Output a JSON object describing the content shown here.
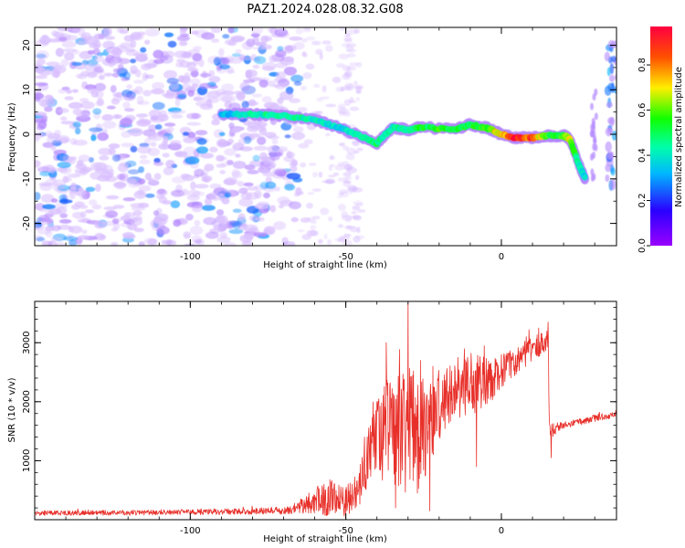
{
  "title": "PAZ1.2024.028.08.32.G08",
  "colors": {
    "snr_line": "#e8302a",
    "spectral_core": "#f00000",
    "spectral_low": "#c9a6ff"
  },
  "chart_data": [
    {
      "type": "heatmap",
      "xlabel": "Height of straight line (km)",
      "ylabel": "Frequency (Hz)",
      "xlim": [
        -150,
        37
      ],
      "ylim": [
        -25,
        24
      ],
      "xticks": [
        -100,
        -50,
        0
      ],
      "yticks": [
        -20,
        -10,
        0,
        10,
        20
      ],
      "colorbar": {
        "label": "Normalized spectral amplitude",
        "range": [
          0.0,
          0.97
        ],
        "ticks": [
          0.0,
          0.2,
          0.4,
          0.6,
          0.8
        ],
        "tick_labels": [
          "0.0",
          "0.2",
          "0.4",
          "0.6",
          "0.8"
        ],
        "colormap": "gist_rainbow_r (violet → blue → cyan → green → yellow → red)"
      },
      "ridge": {
        "description": "main frequency ridge of high amplitude",
        "points": [
          {
            "x": -90,
            "y": 4.5,
            "amp": 0.35
          },
          {
            "x": -80,
            "y": 4.5,
            "amp": 0.45
          },
          {
            "x": -70,
            "y": 4.2,
            "amp": 0.5
          },
          {
            "x": -60,
            "y": 3.2,
            "amp": 0.45
          },
          {
            "x": -52,
            "y": 1.5,
            "amp": 0.4
          },
          {
            "x": -45,
            "y": -0.5,
            "amp": 0.45
          },
          {
            "x": -40,
            "y": -2.0,
            "amp": 0.5
          },
          {
            "x": -35,
            "y": 1.5,
            "amp": 0.45
          },
          {
            "x": -30,
            "y": 1.0,
            "amp": 0.5
          },
          {
            "x": -25,
            "y": 1.6,
            "amp": 0.55
          },
          {
            "x": -15,
            "y": 1.0,
            "amp": 0.6
          },
          {
            "x": -10,
            "y": 2.2,
            "amp": 0.55
          },
          {
            "x": -5,
            "y": 1.5,
            "amp": 0.6
          },
          {
            "x": 0,
            "y": 0.0,
            "amp": 0.8
          },
          {
            "x": 5,
            "y": -0.8,
            "amp": 0.97
          },
          {
            "x": 10,
            "y": -0.8,
            "amp": 0.9
          },
          {
            "x": 15,
            "y": -0.3,
            "amp": 0.6
          },
          {
            "x": 20,
            "y": -0.3,
            "amp": 0.6
          },
          {
            "x": 22,
            "y": -1.0,
            "amp": 0.75
          },
          {
            "x": 25,
            "y": -7.0,
            "amp": 0.45
          },
          {
            "x": 27,
            "y": -10.0,
            "amp": 0.4
          }
        ]
      }
    },
    {
      "type": "line",
      "xlabel": "Height of straight line (km)",
      "ylabel": "SNR (10 * v/v)",
      "xlim": [
        -150,
        37
      ],
      "ylim": [
        0,
        3700
      ],
      "xticks": [
        -100,
        -50,
        0
      ],
      "yticks": [
        1000,
        2000,
        3000
      ],
      "series": [
        {
          "envelope": [
            {
              "x": -150,
              "mean": 110,
              "amp": 40
            },
            {
              "x": -120,
              "mean": 120,
              "amp": 45
            },
            {
              "x": -100,
              "mean": 130,
              "amp": 45
            },
            {
              "x": -80,
              "mean": 140,
              "amp": 55
            },
            {
              "x": -68,
              "mean": 160,
              "amp": 70
            },
            {
              "x": -62,
              "mean": 280,
              "amp": 170
            },
            {
              "x": -56,
              "mean": 380,
              "amp": 320
            },
            {
              "x": -50,
              "mean": 300,
              "amp": 260
            },
            {
              "x": -46,
              "mean": 500,
              "amp": 320
            },
            {
              "x": -41,
              "mean": 1300,
              "amp": 650
            },
            {
              "x": -36,
              "mean": 1500,
              "amp": 950
            },
            {
              "x": -30,
              "mean": 1450,
              "amp": 1150
            },
            {
              "x": -25,
              "mean": 1500,
              "amp": 900
            },
            {
              "x": -20,
              "mean": 1900,
              "amp": 550
            },
            {
              "x": -15,
              "mean": 2150,
              "amp": 600
            },
            {
              "x": -10,
              "mean": 2300,
              "amp": 550
            },
            {
              "x": -5,
              "mean": 2350,
              "amp": 450
            },
            {
              "x": 0,
              "mean": 2500,
              "amp": 300
            },
            {
              "x": 5,
              "mean": 2700,
              "amp": 250
            },
            {
              "x": 10,
              "mean": 2900,
              "amp": 200
            },
            {
              "x": 15,
              "mean": 3050,
              "amp": 200
            },
            {
              "x": 15.5,
              "mean": 1500,
              "amp": 150
            },
            {
              "x": 20,
              "mean": 1600,
              "amp": 60
            },
            {
              "x": 30,
              "mean": 1720,
              "amp": 60
            },
            {
              "x": 37,
              "mean": 1780,
              "amp": 60
            }
          ],
          "spikes": [
            {
              "x": -50.5,
              "y": 60
            },
            {
              "x": -44,
              "y": 1400
            },
            {
              "x": -40,
              "y": 2000
            },
            {
              "x": -37,
              "y": 3000
            },
            {
              "x": -34,
              "y": 200
            },
            {
              "x": -30,
              "y": 3700
            },
            {
              "x": -27,
              "y": 450
            },
            {
              "x": -26,
              "y": 2700
            },
            {
              "x": -23,
              "y": 150
            },
            {
              "x": -22,
              "y": 2600
            },
            {
              "x": -17,
              "y": 2100
            },
            {
              "x": -14,
              "y": 2750
            },
            {
              "x": -12,
              "y": 2650
            },
            {
              "x": -8,
              "y": 900
            },
            {
              "x": -7,
              "y": 2300
            },
            {
              "x": 0,
              "y": 2800
            },
            {
              "x": 12,
              "y": 3250
            },
            {
              "x": 15,
              "y": 3350
            },
            {
              "x": 16,
              "y": 1050
            }
          ]
        }
      ]
    }
  ]
}
